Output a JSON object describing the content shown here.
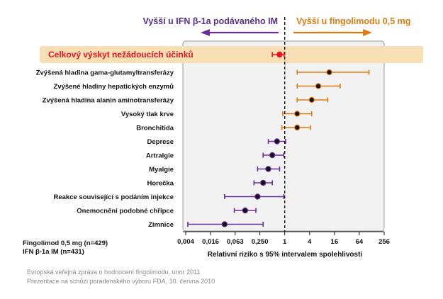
{
  "header": {
    "left_label": "Vyšší u IFN β-1a podávaného IM",
    "right_label": "Vyšší u fingolimodu 0,5 mg"
  },
  "colors": {
    "favor_ifn": "#6a2c9e",
    "favor_fingolimod": "#e07a10",
    "overall": "#e8131f",
    "overall_band": "#f9dfb6",
    "plot_bg": "#f2f2f2",
    "point": "#111111"
  },
  "chart_data": {
    "type": "forest",
    "xscale": "log2",
    "xlabel": "Relativní riziko s 95% intervalem spolehlivosti",
    "xlim": [
      0.004,
      256
    ],
    "xticks": [
      "0,004",
      "0,016",
      "0,063",
      "0,250",
      "1",
      "4",
      "16",
      "64",
      "256"
    ],
    "xtick_values": [
      0.004,
      0.016,
      0.063,
      0.25,
      1,
      4,
      16,
      64,
      256
    ],
    "reference_line": 1,
    "overall": {
      "label": "Celkový výskyt nežádoucích účinků",
      "rr": 0.75,
      "lo": 0.5,
      "hi": 0.97
    },
    "rows": [
      {
        "label": "Zvýšená hladina gama-glutamyltransferázy",
        "rr": 12.0,
        "lo": 2.0,
        "hi": 110.0,
        "favor": "fingolimod"
      },
      {
        "label": "Zvýšené hladiny hepatických enzymů",
        "rr": 6.5,
        "lo": 2.0,
        "hi": 22.0,
        "favor": "fingolimod"
      },
      {
        "label": "Zvýšená hladina alanin aminotransferázy",
        "rr": 4.5,
        "lo": 2.0,
        "hi": 11.0,
        "favor": "fingolimod"
      },
      {
        "label": "Vysoký tlak krve",
        "rr": 2.0,
        "lo": 0.9,
        "hi": 4.5,
        "favor": "fingolimod"
      },
      {
        "label": "Bronchitida",
        "rr": 2.0,
        "lo": 0.85,
        "hi": 4.2,
        "favor": "fingolimod"
      },
      {
        "label": "Deprese",
        "rr": 0.65,
        "lo": 0.4,
        "hi": 1.05,
        "favor": "ifn"
      },
      {
        "label": "Artralgie",
        "rr": 0.5,
        "lo": 0.3,
        "hi": 0.95,
        "favor": "ifn"
      },
      {
        "label": "Myalgie",
        "rr": 0.4,
        "lo": 0.22,
        "hi": 0.75,
        "favor": "ifn"
      },
      {
        "label": "Horečka",
        "rr": 0.3,
        "lo": 0.18,
        "hi": 0.5,
        "favor": "ifn"
      },
      {
        "label": "Reakce související s podáním injekce",
        "rr": 0.22,
        "lo": 0.035,
        "hi": 0.95,
        "favor": "ifn"
      },
      {
        "label": "Onemocnění podobné chřipce",
        "rr": 0.11,
        "lo": 0.06,
        "hi": 0.2,
        "favor": "ifn"
      },
      {
        "label": "Zimnice",
        "rr": 0.035,
        "lo": 0.0045,
        "hi": 0.3,
        "favor": "ifn"
      }
    ]
  },
  "legend": {
    "group1": "Fingolimod 0,5 mg (n=429)",
    "group2": "IFN β-1a IM (n=431)"
  },
  "source": {
    "line1": "Evropská veřejná zpráva o hodnocení fingolimodu, únor 2011",
    "line2": "Prezentace na schůzi poradenského výboru FDA, 10. června 2010"
  }
}
